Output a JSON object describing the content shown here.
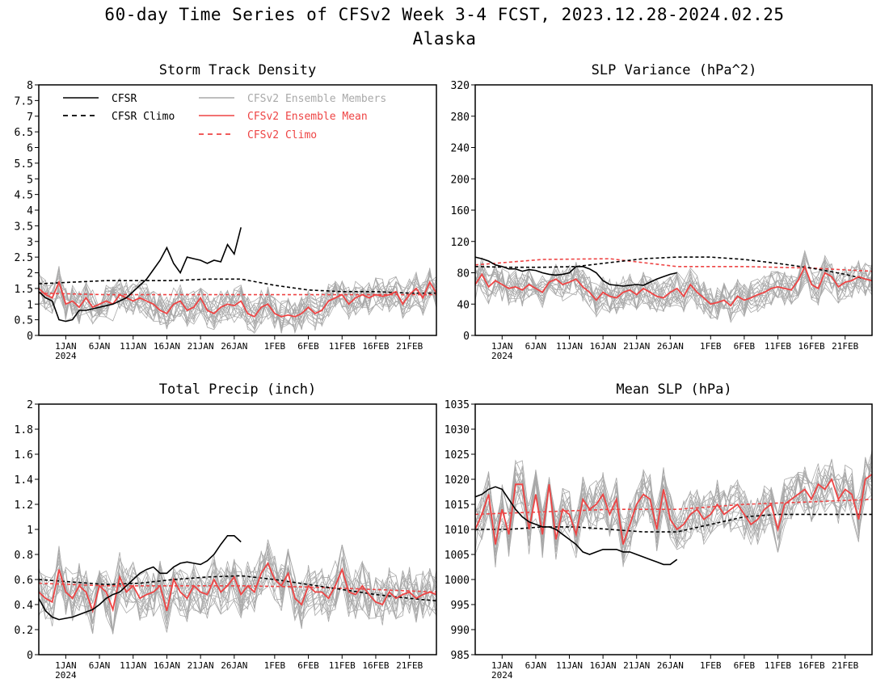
{
  "title": "60-day Time Series of CFSv2 Week 3-4 FCST, 2023.12.28-2024.02.25",
  "subtitle": "Alaska",
  "colors": {
    "cfsr": "#000000",
    "ensemble_member": "#a9a9a9",
    "ensemble_mean": "#ee4444",
    "cfsv2_climo": "#ee4444"
  },
  "legend": {
    "placement": "top-left of first panel",
    "entries": [
      {
        "label": "CFSR",
        "style": "solid",
        "color": "#000000"
      },
      {
        "label": "CFSR Climo",
        "style": "dashed",
        "color": "#000000"
      },
      {
        "label": "CFSv2 Ensemble Members",
        "style": "solid",
        "color": "#a9a9a9"
      },
      {
        "label": "CFSv2 Ensemble Mean",
        "style": "solid",
        "color": "#ee4444"
      },
      {
        "label": "CFSv2 Climo",
        "style": "dashed",
        "color": "#ee4444"
      }
    ]
  },
  "x_axis": {
    "day_range": [
      0,
      59
    ],
    "start_date": "2023-12-28",
    "ticks": [
      {
        "day": 4,
        "label": "1JAN",
        "sublabel": "2024"
      },
      {
        "day": 9,
        "label": "6JAN"
      },
      {
        "day": 14,
        "label": "11JAN"
      },
      {
        "day": 19,
        "label": "16JAN"
      },
      {
        "day": 24,
        "label": "21JAN"
      },
      {
        "day": 29,
        "label": "26JAN"
      },
      {
        "day": 35,
        "label": "1FEB"
      },
      {
        "day": 40,
        "label": "6FEB"
      },
      {
        "day": 45,
        "label": "11FEB"
      },
      {
        "day": 50,
        "label": "16FEB"
      },
      {
        "day": 55,
        "label": "21FEB"
      }
    ]
  },
  "chart_data": [
    {
      "type": "line",
      "title": "Storm Track Density",
      "ylim": [
        0,
        8
      ],
      "yticks": [
        "0",
        "0.5",
        "1",
        "1.5",
        "2",
        "2.5",
        "3",
        "3.5",
        "4",
        "4.5",
        "5",
        "5.5",
        "6",
        "6.5",
        "7",
        "7.5",
        "8"
      ],
      "show_legend": true,
      "cfsr": {
        "x": [
          0,
          1,
          2,
          3,
          4,
          5,
          6,
          7,
          8,
          9,
          10,
          11,
          12,
          13,
          14,
          15,
          16,
          17,
          18,
          19,
          20,
          21,
          22,
          23,
          24,
          25,
          26,
          27,
          28,
          29,
          30
        ],
        "y": [
          1.4,
          1.2,
          1.1,
          0.5,
          0.45,
          0.5,
          0.8,
          0.8,
          0.85,
          0.9,
          0.95,
          1.0,
          1.1,
          1.2,
          1.4,
          1.6,
          1.8,
          2.1,
          2.4,
          2.8,
          2.3,
          2.0,
          2.5,
          2.45,
          2.4,
          2.3,
          2.4,
          2.35,
          2.9,
          2.6,
          3.45
        ]
      },
      "cfsr_climo": {
        "x": [
          0,
          5,
          10,
          15,
          20,
          25,
          30,
          35,
          40,
          45,
          50,
          55,
          59
        ],
        "y": [
          1.65,
          1.7,
          1.75,
          1.75,
          1.75,
          1.8,
          1.8,
          1.6,
          1.45,
          1.4,
          1.4,
          1.35,
          1.35
        ]
      },
      "cfsv2_climo": {
        "x": [
          0,
          10,
          20,
          30,
          40,
          50,
          59
        ],
        "y": [
          1.35,
          1.3,
          1.3,
          1.3,
          1.3,
          1.3,
          1.3
        ]
      },
      "ensemble_mean": {
        "x": [
          0,
          1,
          2,
          3,
          4,
          5,
          6,
          7,
          8,
          9,
          10,
          11,
          12,
          13,
          14,
          15,
          16,
          17,
          18,
          19,
          20,
          21,
          22,
          23,
          24,
          25,
          26,
          27,
          28,
          29,
          30,
          31,
          32,
          33,
          34,
          35,
          36,
          37,
          38,
          39,
          40,
          41,
          42,
          43,
          44,
          45,
          46,
          47,
          48,
          49,
          50,
          51,
          52,
          53,
          54,
          55,
          56,
          57,
          58,
          59
        ],
        "y": [
          1.5,
          1.3,
          1.2,
          1.7,
          1.0,
          1.1,
          0.9,
          1.2,
          0.9,
          1.0,
          1.1,
          1.0,
          1.3,
          1.2,
          1.1,
          1.2,
          1.1,
          1.0,
          0.8,
          0.7,
          1.0,
          1.1,
          0.8,
          0.9,
          1.2,
          0.8,
          0.7,
          0.9,
          1.0,
          0.95,
          1.1,
          0.7,
          0.6,
          0.9,
          1.0,
          0.7,
          0.6,
          0.65,
          0.6,
          0.7,
          0.9,
          0.7,
          0.8,
          1.1,
          1.2,
          1.3,
          1.0,
          1.2,
          1.3,
          1.2,
          1.3,
          1.25,
          1.3,
          1.4,
          1.0,
          1.3,
          1.5,
          1.2,
          1.7,
          1.35
        ]
      },
      "members_spread": 0.55
    },
    {
      "type": "line",
      "title": "SLP Variance (hPa^2)",
      "ylim": [
        0,
        320
      ],
      "yticks": [
        "0",
        "40",
        "80",
        "120",
        "160",
        "200",
        "240",
        "280",
        "320"
      ],
      "show_legend": false,
      "cfsr": {
        "x": [
          0,
          1,
          2,
          3,
          4,
          5,
          6,
          7,
          8,
          9,
          10,
          11,
          12,
          13,
          14,
          15,
          16,
          17,
          18,
          19,
          20,
          21,
          22,
          23,
          24,
          25,
          26,
          27,
          28,
          29,
          30
        ],
        "y": [
          100,
          98,
          95,
          90,
          88,
          85,
          85,
          82,
          84,
          83,
          80,
          78,
          77,
          78,
          80,
          88,
          88,
          85,
          80,
          70,
          65,
          64,
          63,
          64,
          65,
          64,
          68,
          72,
          75,
          78,
          80
        ]
      },
      "cfsr_climo": {
        "x": [
          0,
          5,
          10,
          15,
          20,
          25,
          30,
          35,
          40,
          45,
          50,
          55,
          59
        ],
        "y": [
          88,
          87,
          87,
          88,
          93,
          98,
          100,
          100,
          97,
          92,
          86,
          78,
          70
        ]
      },
      "cfsv2_climo": {
        "x": [
          0,
          10,
          20,
          30,
          40,
          50,
          59
        ],
        "y": [
          90,
          97,
          98,
          88,
          88,
          86,
          82
        ]
      },
      "ensemble_mean": {
        "x": [
          0,
          1,
          2,
          3,
          4,
          5,
          6,
          7,
          8,
          9,
          10,
          11,
          12,
          13,
          14,
          15,
          16,
          17,
          18,
          19,
          20,
          21,
          22,
          23,
          24,
          25,
          26,
          27,
          28,
          29,
          30,
          31,
          32,
          33,
          34,
          35,
          36,
          37,
          38,
          39,
          40,
          41,
          42,
          43,
          44,
          45,
          46,
          47,
          48,
          49,
          50,
          51,
          52,
          53,
          54,
          55,
          56,
          57,
          58,
          59
        ],
        "y": [
          65,
          78,
          62,
          70,
          65,
          60,
          62,
          58,
          65,
          60,
          55,
          68,
          72,
          65,
          68,
          72,
          62,
          55,
          45,
          55,
          50,
          48,
          55,
          58,
          52,
          60,
          55,
          50,
          48,
          55,
          60,
          50,
          65,
          55,
          48,
          40,
          42,
          45,
          38,
          50,
          45,
          48,
          52,
          55,
          60,
          62,
          60,
          58,
          70,
          88,
          65,
          60,
          80,
          75,
          62,
          68,
          70,
          75,
          72,
          70
        ]
      },
      "members_spread": 22
    },
    {
      "type": "line",
      "title": "Total Precip (inch)",
      "ylim": [
        0,
        2
      ],
      "yticks": [
        "0",
        "0.2",
        "0.4",
        "0.6",
        "0.8",
        "1",
        "1.2",
        "1.4",
        "1.6",
        "1.8",
        "2"
      ],
      "show_legend": false,
      "cfsr": {
        "x": [
          0,
          1,
          2,
          3,
          4,
          5,
          6,
          7,
          8,
          9,
          10,
          11,
          12,
          13,
          14,
          15,
          16,
          17,
          18,
          19,
          20,
          21,
          22,
          23,
          24,
          25,
          26,
          27,
          28,
          29,
          30
        ],
        "y": [
          0.45,
          0.35,
          0.3,
          0.28,
          0.29,
          0.3,
          0.32,
          0.34,
          0.36,
          0.4,
          0.45,
          0.48,
          0.5,
          0.55,
          0.6,
          0.65,
          0.68,
          0.7,
          0.65,
          0.65,
          0.7,
          0.73,
          0.74,
          0.73,
          0.72,
          0.75,
          0.8,
          0.88,
          0.95,
          0.95,
          0.9
        ]
      },
      "cfsr_climo": {
        "x": [
          0,
          5,
          10,
          15,
          20,
          25,
          30,
          35,
          40,
          45,
          50,
          55,
          59
        ],
        "y": [
          0.6,
          0.58,
          0.56,
          0.57,
          0.6,
          0.62,
          0.63,
          0.6,
          0.56,
          0.52,
          0.48,
          0.45,
          0.43
        ]
      },
      "cfsv2_climo": {
        "x": [
          0,
          10,
          20,
          30,
          40,
          50,
          59
        ],
        "y": [
          0.57,
          0.55,
          0.55,
          0.55,
          0.54,
          0.52,
          0.5
        ]
      },
      "ensemble_mean": {
        "x": [
          0,
          1,
          2,
          3,
          4,
          5,
          6,
          7,
          8,
          9,
          10,
          11,
          12,
          13,
          14,
          15,
          16,
          17,
          18,
          19,
          20,
          21,
          22,
          23,
          24,
          25,
          26,
          27,
          28,
          29,
          30,
          31,
          32,
          33,
          34,
          35,
          36,
          37,
          38,
          39,
          40,
          41,
          42,
          43,
          44,
          45,
          46,
          47,
          48,
          49,
          50,
          51,
          52,
          53,
          54,
          55,
          56,
          57,
          58,
          59
        ],
        "y": [
          0.5,
          0.45,
          0.42,
          0.68,
          0.5,
          0.45,
          0.55,
          0.5,
          0.35,
          0.55,
          0.5,
          0.36,
          0.62,
          0.5,
          0.55,
          0.45,
          0.48,
          0.5,
          0.55,
          0.35,
          0.6,
          0.5,
          0.45,
          0.55,
          0.5,
          0.48,
          0.6,
          0.5,
          0.55,
          0.62,
          0.48,
          0.55,
          0.5,
          0.65,
          0.73,
          0.6,
          0.55,
          0.65,
          0.45,
          0.4,
          0.55,
          0.5,
          0.5,
          0.45,
          0.55,
          0.68,
          0.5,
          0.48,
          0.55,
          0.48,
          0.42,
          0.4,
          0.5,
          0.45,
          0.48,
          0.5,
          0.45,
          0.48,
          0.5,
          0.48
        ]
      },
      "members_spread": 0.2
    },
    {
      "type": "line",
      "title": "Mean SLP (hPa)",
      "ylim": [
        985,
        1035
      ],
      "yticks": [
        "985",
        "990",
        "995",
        "1000",
        "1005",
        "1010",
        "1015",
        "1020",
        "1025",
        "1030",
        "1035"
      ],
      "show_legend": false,
      "cfsr": {
        "x": [
          0,
          1,
          2,
          3,
          4,
          5,
          6,
          7,
          8,
          9,
          10,
          11,
          12,
          13,
          14,
          15,
          16,
          17,
          18,
          19,
          20,
          21,
          22,
          23,
          24,
          25,
          26,
          27,
          28,
          29,
          30
        ],
        "y": [
          1016.5,
          1017,
          1018,
          1018.5,
          1018,
          1016,
          1014,
          1012.5,
          1011.5,
          1011,
          1010.5,
          1010.5,
          1010,
          1009,
          1008,
          1007,
          1005.5,
          1005,
          1005.5,
          1006,
          1006,
          1006,
          1005.5,
          1005.5,
          1005,
          1004.5,
          1004,
          1003.5,
          1003,
          1003,
          1004
        ]
      },
      "cfsr_climo": {
        "x": [
          0,
          5,
          10,
          15,
          20,
          25,
          30,
          35,
          40,
          45,
          50,
          55,
          59
        ],
        "y": [
          1010,
          1010,
          1010.5,
          1010.5,
          1010,
          1009.5,
          1009.5,
          1011,
          1012.5,
          1013,
          1013,
          1013,
          1013
        ]
      },
      "cfsv2_climo": {
        "x": [
          0,
          10,
          20,
          30,
          40,
          50,
          59
        ],
        "y": [
          1013,
          1013.5,
          1014,
          1014,
          1015,
          1015.5,
          1016
        ]
      },
      "ensemble_mean": {
        "x": [
          0,
          1,
          2,
          3,
          4,
          5,
          6,
          7,
          8,
          9,
          10,
          11,
          12,
          13,
          14,
          15,
          16,
          17,
          18,
          19,
          20,
          21,
          22,
          23,
          24,
          25,
          26,
          27,
          28,
          29,
          30,
          31,
          32,
          33,
          34,
          35,
          36,
          37,
          38,
          39,
          40,
          41,
          42,
          43,
          44,
          45,
          46,
          47,
          48,
          49,
          50,
          51,
          52,
          53,
          54,
          55,
          56,
          57,
          58,
          59
        ],
        "y": [
          1010,
          1013,
          1017,
          1007,
          1014,
          1009,
          1019,
          1019,
          1010,
          1017,
          1009,
          1019,
          1008,
          1014,
          1013,
          1009,
          1016,
          1014,
          1015,
          1017,
          1013,
          1016,
          1007,
          1011,
          1015,
          1017,
          1016,
          1010,
          1018,
          1012,
          1010,
          1011,
          1013,
          1014,
          1012,
          1013,
          1015,
          1013,
          1014,
          1015,
          1013,
          1011,
          1012,
          1014,
          1015,
          1010,
          1015,
          1016,
          1017,
          1018,
          1016,
          1019,
          1018,
          1020,
          1016,
          1018,
          1017,
          1012,
          1020,
          1021
        ]
      },
      "members_spread": 5
    }
  ]
}
